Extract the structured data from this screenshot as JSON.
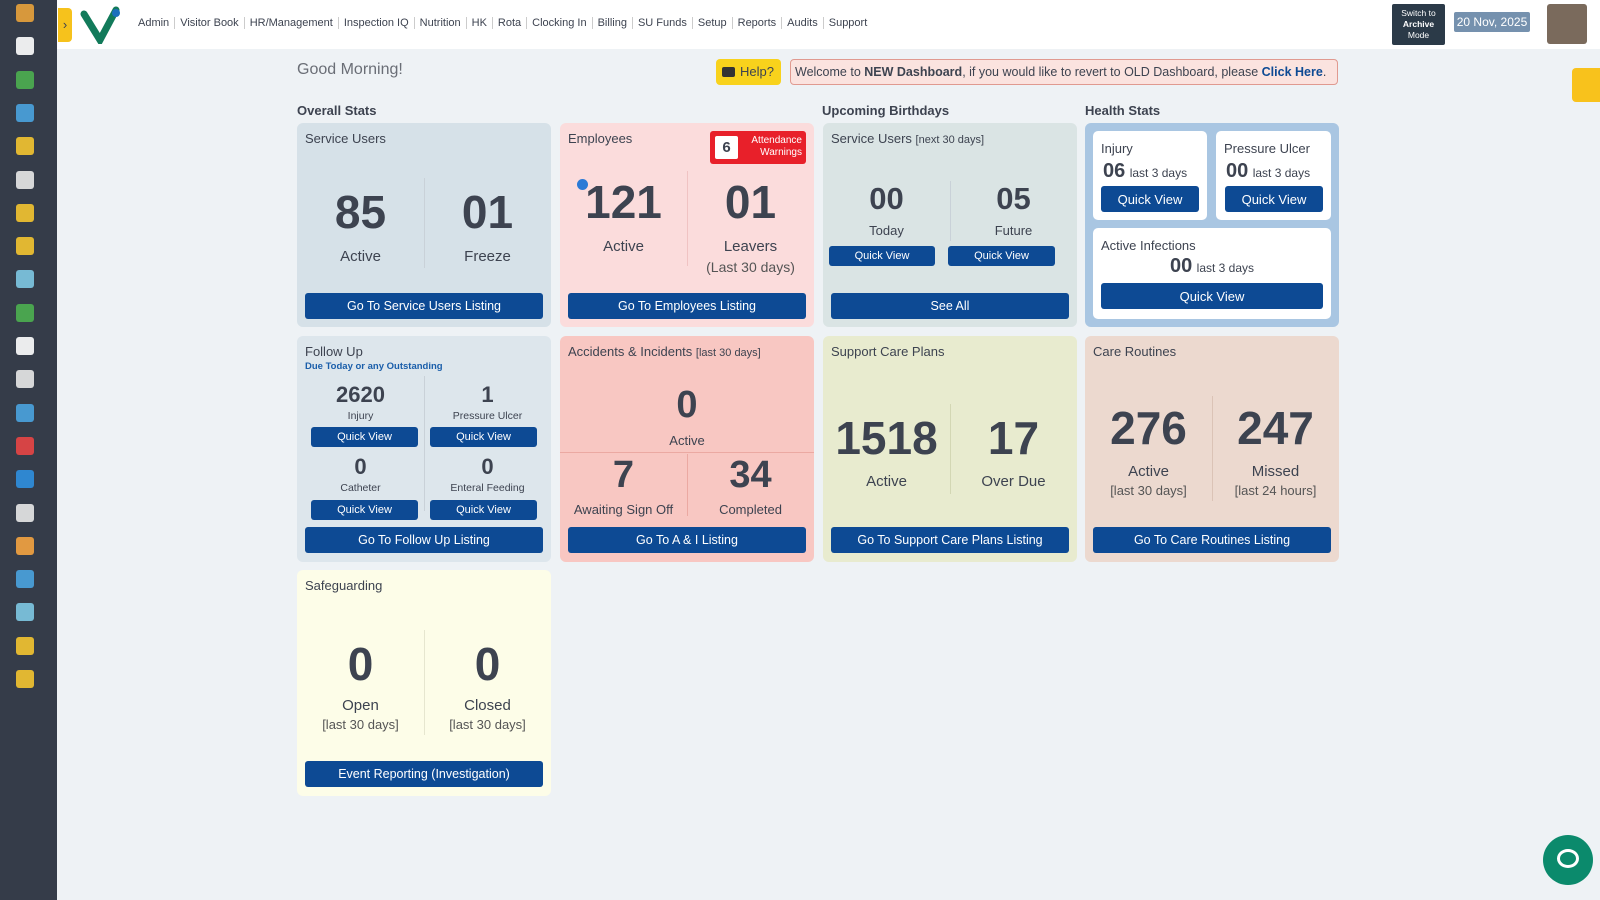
{
  "nav": {
    "items": [
      "Admin",
      "Visitor Book",
      "HR/Management",
      "Inspection IQ",
      "Nutrition",
      "HK",
      "Rota",
      "Clocking In",
      "Billing",
      "SU Funds",
      "Setup",
      "Reports",
      "Audits",
      "Support"
    ],
    "archive": {
      "line1": "Switch to",
      "line2": "Archive",
      "line3": "Mode"
    },
    "date": "20 Nov, 2025"
  },
  "greeting": "Good Morning!",
  "help": "Help?",
  "banner": {
    "prefix": "Welcome to ",
    "bold": "NEW Dashboard",
    "middle": ", if you would like to revert to OLD Dashboard, please ",
    "link": "Click Here",
    "suffix": "."
  },
  "sections": {
    "overall": "Overall Stats",
    "birthdays": "Upcoming Birthdays",
    "health": "Health Stats"
  },
  "service_users": {
    "title": "Service Users",
    "stats": [
      {
        "value": "85",
        "label": "Active"
      },
      {
        "value": "01",
        "label": "Freeze"
      }
    ],
    "button": "Go To Service Users Listing"
  },
  "employees": {
    "title": "Employees",
    "warning": {
      "count": "6",
      "label": "Attendance Warnings"
    },
    "stats": [
      {
        "value": "121",
        "label": "Active"
      },
      {
        "value": "01",
        "label": "Leavers",
        "note": "(Last 30 days)"
      }
    ],
    "button": "Go To Employees Listing"
  },
  "birthdays": {
    "title": "Service Users",
    "note": "[next 30 days]",
    "stats": [
      {
        "value": "00",
        "label": "Today",
        "button": "Quick View"
      },
      {
        "value": "05",
        "label": "Future",
        "button": "Quick View"
      }
    ],
    "button": "See All"
  },
  "health": {
    "injury": {
      "title": "Injury",
      "value": "06",
      "note": "last 3 days",
      "button": "Quick View"
    },
    "pressure_ulcer": {
      "title": "Pressure Ulcer",
      "value": "00",
      "note": "last 3 days",
      "button": "Quick View"
    },
    "infections": {
      "title": "Active Infections",
      "value": "00",
      "note": "last 3 days",
      "button": "Quick View"
    }
  },
  "follow_up": {
    "title": "Follow Up",
    "subtitle": "Due Today or any Outstanding",
    "items": [
      {
        "value": "2620",
        "label": "Injury",
        "button": "Quick View"
      },
      {
        "value": "1",
        "label": "Pressure Ulcer",
        "button": "Quick View"
      },
      {
        "value": "0",
        "label": "Catheter",
        "button": "Quick View"
      },
      {
        "value": "0",
        "label": "Enteral Feeding",
        "button": "Quick View"
      }
    ],
    "button": "Go To Follow Up Listing"
  },
  "accidents": {
    "title": "Accidents & Incidents",
    "note": "[last 30 days]",
    "top": {
      "value": "0",
      "label": "Active"
    },
    "stats": [
      {
        "value": "7",
        "label": "Awaiting Sign Off"
      },
      {
        "value": "34",
        "label": "Completed"
      }
    ],
    "button": "Go To A & I Listing"
  },
  "care_plans": {
    "title": "Support Care Plans",
    "stats": [
      {
        "value": "1518",
        "label": "Active"
      },
      {
        "value": "17",
        "label": "Over Due"
      }
    ],
    "button": "Go To Support Care Plans Listing"
  },
  "care_routines": {
    "title": "Care Routines",
    "stats": [
      {
        "value": "276",
        "label": "Active",
        "note": "[last 30 days]"
      },
      {
        "value": "247",
        "label": "Missed",
        "note": "[last 24 hours]"
      }
    ],
    "button": "Go To Care Routines Listing"
  },
  "safeguarding": {
    "title": "Safeguarding",
    "stats": [
      {
        "value": "0",
        "label": "Open",
        "note": "[last 30 days]"
      },
      {
        "value": "0",
        "label": "Closed",
        "note": "[last 30 days]"
      }
    ],
    "button": "Event Reporting (Investigation)"
  }
}
